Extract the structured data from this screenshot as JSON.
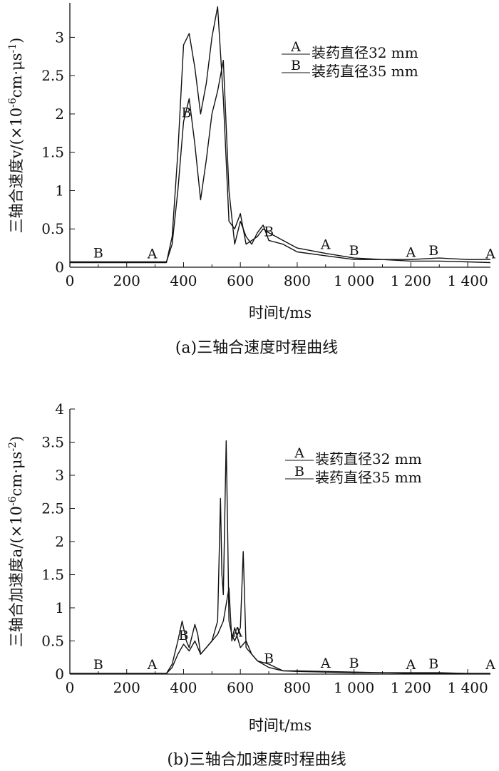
{
  "chart_data": [
    {
      "type": "line",
      "caption": "(a)三轴合速度时程曲线",
      "xlabel": "时间t/ms",
      "ylabel": "三轴合速度v/(×10-6cm·μs-1)",
      "xlim": [
        0,
        1480
      ],
      "ylim": [
        0,
        3.45
      ],
      "xticks": [
        "0",
        "200",
        "400",
        "600",
        "800",
        "1 000",
        "1 200",
        "1 400"
      ],
      "yticks": [
        "0",
        "0.5",
        "1",
        "1.5",
        "2",
        "2.5",
        "3"
      ],
      "legend_position": "top-right",
      "series": [
        {
          "name": "装药直径32 mm",
          "marker": "A",
          "x": [
            0,
            340,
            360,
            380,
            400,
            420,
            440,
            460,
            480,
            500,
            520,
            540,
            560,
            580,
            600,
            620,
            640,
            660,
            680,
            700,
            750,
            800,
            900,
            1000,
            1100,
            1200,
            1300,
            1400,
            1480
          ],
          "y": [
            0.06,
            0.06,
            0.4,
            1.5,
            2.9,
            3.05,
            2.6,
            2.0,
            2.4,
            3.0,
            3.4,
            2.2,
            0.6,
            0.5,
            0.7,
            0.3,
            0.35,
            0.4,
            0.5,
            0.45,
            0.35,
            0.25,
            0.18,
            0.12,
            0.1,
            0.08,
            0.08,
            0.07,
            0.06
          ]
        },
        {
          "name": "装药直径35 mm",
          "marker": "B",
          "x": [
            0,
            340,
            360,
            380,
            400,
            420,
            440,
            460,
            480,
            500,
            520,
            540,
            560,
            580,
            600,
            620,
            640,
            660,
            680,
            700,
            750,
            800,
            900,
            1000,
            1100,
            1200,
            1300,
            1400,
            1480
          ],
          "y": [
            0.07,
            0.07,
            0.3,
            1.0,
            1.9,
            2.2,
            1.6,
            0.88,
            1.4,
            2.0,
            2.3,
            2.7,
            1.0,
            0.3,
            0.6,
            0.4,
            0.3,
            0.45,
            0.55,
            0.35,
            0.3,
            0.2,
            0.15,
            0.1,
            0.1,
            0.1,
            0.12,
            0.1,
            0.1
          ]
        }
      ]
    },
    {
      "type": "line",
      "caption": "(b)三轴合加速度时程曲线",
      "xlabel": "时间t/ms",
      "ylabel": "三轴合加速度a/(×10-6cm·μs-2)",
      "xlim": [
        0,
        1480
      ],
      "ylim": [
        0,
        4
      ],
      "xticks": [
        "0",
        "200",
        "400",
        "600",
        "800",
        "1 000",
        "1 200",
        "1 400"
      ],
      "yticks": [
        "0",
        "0.5",
        "1",
        "1.5",
        "2",
        "2.5",
        "3",
        "3.5",
        "4"
      ],
      "legend_position": "top-right",
      "series": [
        {
          "name": "装药直径32 mm",
          "marker": "A",
          "x": [
            0,
            340,
            360,
            380,
            395,
            410,
            420,
            440,
            450,
            460,
            480,
            500,
            520,
            530,
            535,
            540,
            550,
            555,
            560,
            570,
            580,
            600,
            610,
            620,
            640,
            660,
            700,
            750,
            800,
            900,
            1000,
            1100,
            1200,
            1300,
            1400,
            1480
          ],
          "y": [
            0.01,
            0.01,
            0.15,
            0.5,
            0.8,
            0.5,
            0.4,
            0.75,
            0.6,
            0.3,
            0.4,
            0.5,
            0.8,
            2.65,
            1.5,
            1.2,
            3.52,
            2.2,
            0.8,
            0.6,
            0.5,
            0.7,
            1.85,
            0.4,
            0.3,
            0.2,
            0.15,
            0.05,
            0.04,
            0.03,
            0.02,
            0.02,
            0.01,
            0.01,
            0.01,
            0.01
          ]
        },
        {
          "name": "装药直径35 mm",
          "marker": "B",
          "x": [
            0,
            340,
            360,
            380,
            400,
            420,
            440,
            460,
            480,
            500,
            520,
            540,
            560,
            570,
            580,
            600,
            620,
            640,
            660,
            700,
            750,
            800,
            900,
            1000,
            1100,
            1200,
            1300,
            1400,
            1480
          ],
          "y": [
            0.01,
            0.01,
            0.1,
            0.3,
            0.45,
            0.35,
            0.5,
            0.3,
            0.4,
            0.5,
            0.6,
            0.8,
            1.3,
            0.5,
            0.7,
            0.4,
            0.5,
            0.3,
            0.2,
            0.1,
            0.05,
            0.05,
            0.04,
            0.03,
            0.02,
            0.02,
            0.02,
            0.01,
            0.01
          ]
        }
      ]
    }
  ]
}
